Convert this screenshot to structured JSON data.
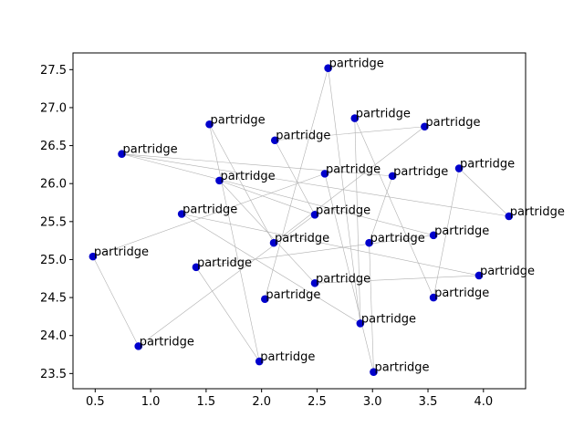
{
  "chart_data": {
    "type": "scatter",
    "title": "",
    "xlabel": "",
    "ylabel": "",
    "xlim": [
      0.3,
      4.38
    ],
    "ylim": [
      23.3,
      27.72
    ],
    "xticks": [
      "0.5",
      "1.0",
      "1.5",
      "2.0",
      "2.5",
      "3.0",
      "3.5",
      "4.0"
    ],
    "yticks": [
      "23.5",
      "24.0",
      "24.5",
      "25.0",
      "25.5",
      "26.0",
      "26.5",
      "27.0",
      "27.5"
    ],
    "grid": false,
    "marker_color": "#0000cc",
    "line_color": "#b0b0b0",
    "points": [
      {
        "x": 2.6,
        "y": 27.52,
        "label": "partridge"
      },
      {
        "x": 2.84,
        "y": 26.86,
        "label": "partridge"
      },
      {
        "x": 1.53,
        "y": 26.78,
        "label": "partridge"
      },
      {
        "x": 3.47,
        "y": 26.75,
        "label": "partridge"
      },
      {
        "x": 2.12,
        "y": 26.57,
        "label": "partridge"
      },
      {
        "x": 0.74,
        "y": 26.39,
        "label": "partridge"
      },
      {
        "x": 3.78,
        "y": 26.2,
        "label": "partridge"
      },
      {
        "x": 2.57,
        "y": 26.13,
        "label": "partridge"
      },
      {
        "x": 3.18,
        "y": 26.1,
        "label": "partridge"
      },
      {
        "x": 1.62,
        "y": 26.04,
        "label": "partridge"
      },
      {
        "x": 1.28,
        "y": 25.6,
        "label": "partridge"
      },
      {
        "x": 2.48,
        "y": 25.59,
        "label": "partridge"
      },
      {
        "x": 4.23,
        "y": 25.57,
        "label": "partridge"
      },
      {
        "x": 3.55,
        "y": 25.32,
        "label": "partridge"
      },
      {
        "x": 2.97,
        "y": 25.22,
        "label": "partridge"
      },
      {
        "x": 2.11,
        "y": 25.22,
        "label": "partridge"
      },
      {
        "x": 0.48,
        "y": 25.04,
        "label": "partridge"
      },
      {
        "x": 1.41,
        "y": 24.9,
        "label": "partridge"
      },
      {
        "x": 3.96,
        "y": 24.79,
        "label": "partridge"
      },
      {
        "x": 2.48,
        "y": 24.69,
        "label": "partridge"
      },
      {
        "x": 3.55,
        "y": 24.5,
        "label": "partridge"
      },
      {
        "x": 2.03,
        "y": 24.48,
        "label": "partridge"
      },
      {
        "x": 2.89,
        "y": 24.16,
        "label": "partridge"
      },
      {
        "x": 0.89,
        "y": 23.86,
        "label": "partridge"
      },
      {
        "x": 1.98,
        "y": 23.66,
        "label": "partridge"
      },
      {
        "x": 3.01,
        "y": 23.52,
        "label": "partridge"
      }
    ],
    "edges": [
      [
        0,
        22
      ],
      [
        0,
        21
      ],
      [
        1,
        20
      ],
      [
        1,
        22
      ],
      [
        2,
        24
      ],
      [
        2,
        15
      ],
      [
        3,
        4
      ],
      [
        3,
        15
      ],
      [
        4,
        11
      ],
      [
        5,
        12
      ],
      [
        5,
        8
      ],
      [
        5,
        13
      ],
      [
        6,
        20
      ],
      [
        6,
        12
      ],
      [
        7,
        25
      ],
      [
        7,
        16
      ],
      [
        8,
        14
      ],
      [
        9,
        11
      ],
      [
        10,
        18
      ],
      [
        10,
        22
      ],
      [
        11,
        23
      ],
      [
        13,
        17
      ],
      [
        14,
        25
      ],
      [
        16,
        23
      ],
      [
        17,
        24
      ],
      [
        18,
        19
      ],
      [
        19,
        9
      ]
    ]
  }
}
